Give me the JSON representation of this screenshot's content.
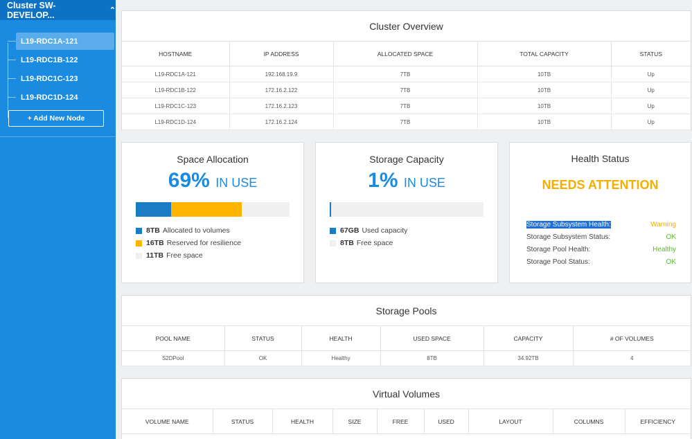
{
  "sidebar": {
    "cluster_title": "Cluster SW-DEVELOP...",
    "nodes": [
      "L19-RDC1A-121",
      "L19-RDC1B-122",
      "L19-RDC1C-123",
      "L19-RDC1D-124"
    ],
    "add_node_label": "+ Add New Node"
  },
  "overview": {
    "title": "Cluster Overview",
    "headers": [
      "HOSTNAME",
      "IP ADDRESS",
      "ALLOCATED SPACE",
      "TOTAL CAPACITY",
      "STATUS"
    ],
    "rows": [
      [
        "L19-RDC1A-121",
        "192.168.19.9",
        "7TB",
        "10TB",
        "Up"
      ],
      [
        "L19-RDC1B-122",
        "172.16.2.122",
        "7TB",
        "10TB",
        "Up"
      ],
      [
        "L19-RDC1C-123",
        "172.16.2.123",
        "7TB",
        "10TB",
        "Up"
      ],
      [
        "L19-RDC1D-124",
        "172.16.2.124",
        "7TB",
        "10TB",
        "Up"
      ]
    ]
  },
  "space": {
    "title": "Space Allocation",
    "percent": "69%",
    "in_use": "IN USE",
    "segments": [
      {
        "fraction": 0.23,
        "color": "#1a7cc4"
      },
      {
        "fraction": 0.46,
        "color": "#ffb400"
      }
    ],
    "legend": [
      {
        "value": "8TB",
        "label": "Allocated to volumes",
        "color": "#1a7cc4"
      },
      {
        "value": "16TB",
        "label": "Reserved for resilience",
        "color": "#ffb400"
      },
      {
        "value": "11TB",
        "label": "Free space",
        "color": "#f0f0f0"
      }
    ]
  },
  "storage": {
    "title": "Storage Capacity",
    "percent": "1%",
    "in_use": "IN USE",
    "used_fraction": 0.01,
    "used_color": "#1a7cc4",
    "legend": [
      {
        "value": "67GB",
        "label": "Used capacity",
        "color": "#1a7cc4"
      },
      {
        "value": "8TB",
        "label": "Free space",
        "color": "#f0f0f0"
      }
    ]
  },
  "health": {
    "title": "Health Status",
    "status": "NEEDS ATTENTION",
    "items": [
      {
        "label": "Storage Subsystem Health:",
        "value": "Warning",
        "color": "#f5ae00"
      },
      {
        "label": "Storage Subsystem Status:",
        "value": "OK",
        "color": "#5cb531"
      },
      {
        "label": "Storage Pool Health:",
        "value": "Healthy",
        "color": "#5cb531"
      },
      {
        "label": "Storage Pool Status:",
        "value": "OK",
        "color": "#5cb531"
      }
    ]
  },
  "pools": {
    "title": "Storage Pools",
    "headers": [
      "POOL NAME",
      "STATUS",
      "HEALTH",
      "USED SPACE",
      "CAPACITY",
      "# OF VOLUMES"
    ],
    "rows": [
      [
        "S2DPool",
        "OK",
        "Healthy",
        "8TB",
        "34.92TB",
        "4"
      ]
    ]
  },
  "volumes": {
    "title": "Virtual Volumes",
    "headers": [
      "VOLUME NAME",
      "STATUS",
      "HEALTH",
      "SIZE",
      "FREE",
      "USED",
      "LAYOUT",
      "COLUMNS",
      "EFFICIENCY"
    ]
  }
}
